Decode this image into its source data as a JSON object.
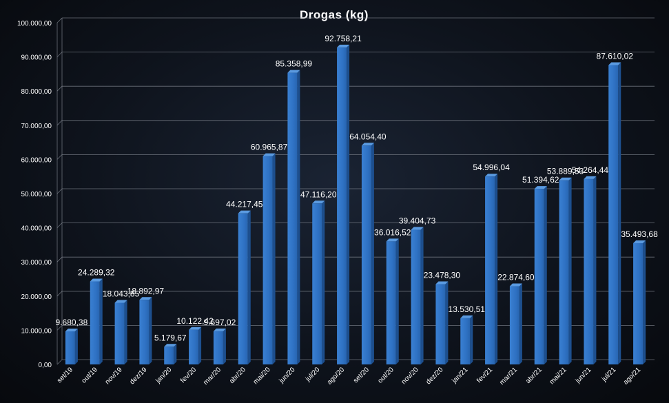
{
  "chart_data": {
    "type": "bar",
    "title": "Drogas (kg)",
    "xlabel": "",
    "ylabel": "",
    "ylim": [
      0,
      100000
    ],
    "yticks": [
      0,
      10000,
      20000,
      30000,
      40000,
      50000,
      60000,
      70000,
      80000,
      90000,
      100000
    ],
    "ytick_labels": [
      "0,00",
      "10.000,00",
      "20.000,00",
      "30.000,00",
      "40.000,00",
      "50.000,00",
      "60.000,00",
      "70.000,00",
      "80.000,00",
      "90.000,00",
      "100.000,00"
    ],
    "grid": true,
    "bar_color": "#2f72c4",
    "categories": [
      "set/19",
      "out/19",
      "nov/19",
      "dez/19",
      "jan/20",
      "fev/20",
      "mar/20",
      "abr/20",
      "mai/20",
      "jun/20",
      "jul/20",
      "ago/20",
      "set/20",
      "out/20",
      "nov/20",
      "dez/20",
      "jan/21",
      "fev/21",
      "mar/21",
      "abr/21",
      "mai/21",
      "jun/21",
      "jul/21",
      "ago/21"
    ],
    "values": [
      9680.38,
      24289.32,
      18043.85,
      18892.97,
      5179.67,
      10122.42,
      9697.02,
      44217.45,
      60965.87,
      85358.99,
      47116.2,
      92758.21,
      64054.4,
      36016.52,
      39404.73,
      23478.3,
      13530.51,
      54996.04,
      22874.6,
      51394.62,
      53889.53,
      54264.44,
      87610.02,
      35493.68
    ],
    "data_labels": [
      "9.680,38",
      "24.289,32",
      "18.043,85",
      "18.892,97",
      "5.179,67",
      "10.122,42",
      "9.697,02",
      "44.217,45",
      "60.965,87",
      "85.358,99",
      "47.116,20",
      "92.758,21",
      "64.054,40",
      "36.016,52",
      "39.404,73",
      "23.478,30",
      "13.530,51",
      "54.996,04",
      "22.874,60",
      "51.394,62",
      "53.889,53",
      "54.264,44",
      "87.610,02",
      "35.493,68"
    ]
  }
}
